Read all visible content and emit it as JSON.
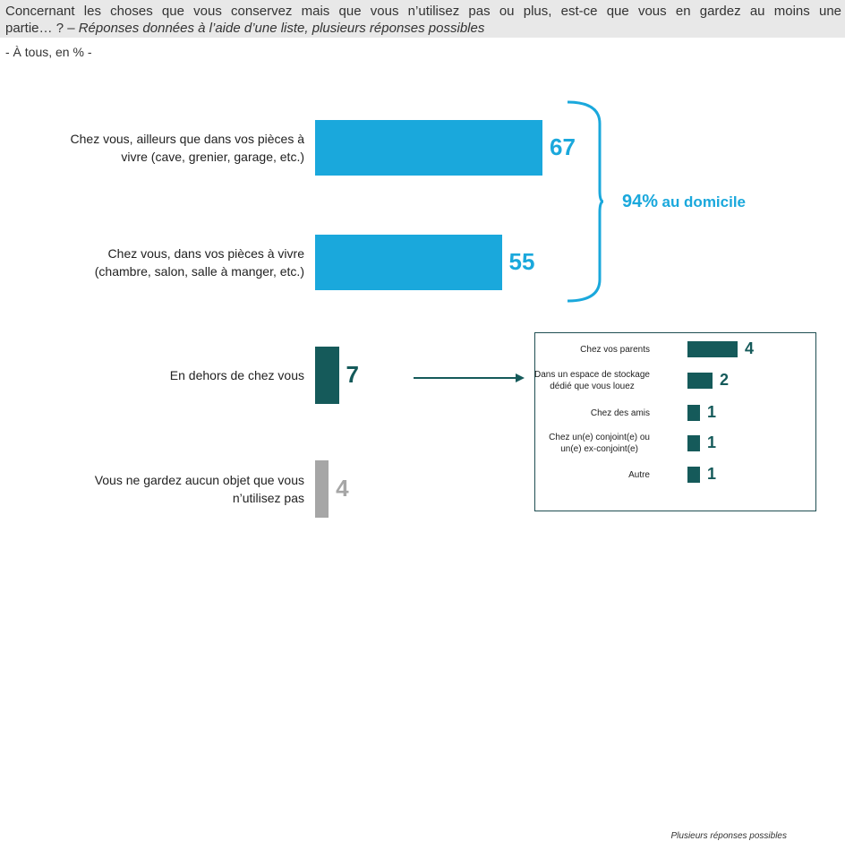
{
  "question": {
    "line1": "Concernant les choses que vous conservez mais que vous n’utilisez pas ou plus, est-ce que vous en gardez au moins une",
    "line2": "partie… ? –",
    "line2_note": "Réponses données à l’aide d’une liste, plusieurs réponses possibles"
  },
  "subtitle": "- À tous, en % -",
  "chart_data": [
    {
      "type": "bar",
      "orientation": "horizontal",
      "categories": [
        "Chez vous, ailleurs que dans vos pièces à vivre (cave, grenier, garage, etc.)",
        "Chez vous, dans vos pièces à vivre (chambre, salon, salle à manger, etc.)",
        "En dehors de chez vous",
        "Vous ne gardez aucun objet que vous n’utilisez pas"
      ],
      "labels": [
        [
          "Chez vous, ailleurs que dans vos pièces à",
          "vivre (cave, grenier, garage, etc.)"
        ],
        [
          "Chez vous, dans vos pièces à vivre",
          "(chambre, salon, salle à manger, etc.)"
        ],
        [
          "En dehors de chez vous"
        ],
        [
          "Vous ne gardez aucun objet que vous",
          "n’utilisez pas"
        ]
      ],
      "values": [
        67,
        55,
        7,
        4
      ],
      "value_labels": [
        "67",
        "55",
        "7",
        "4"
      ],
      "colors": [
        "#1aa8dc",
        "#1aa8dc",
        "#155a5a",
        "#a6a6a6"
      ],
      "grouping": {
        "bracket_over": [
          0,
          1
        ],
        "pct": "94%",
        "label": "au domicile"
      }
    },
    {
      "type": "bar",
      "orientation": "horizontal",
      "categories": [
        "Chez vos parents",
        "Dans un espace de stockage dédié que vous louez",
        "Chez des amis",
        "Chez un(e) conjoint(e) ou un(e) ex-conjoint(e)",
        "Autre"
      ],
      "labels": [
        [
          "Chez vos parents"
        ],
        [
          "Dans un espace de stockage",
          "dédié que vous louez"
        ],
        [
          "Chez des amis"
        ],
        [
          "Chez un(e) conjoint(e) ou",
          "un(e) ex-conjoint(e)"
        ],
        [
          "Autre"
        ]
      ],
      "values": [
        4,
        2,
        1,
        1,
        1
      ],
      "value_labels": [
        "4",
        "2",
        "1",
        "1",
        "1"
      ],
      "color": "#155a5a",
      "footnote": "Plusieurs réponses possibles"
    }
  ]
}
